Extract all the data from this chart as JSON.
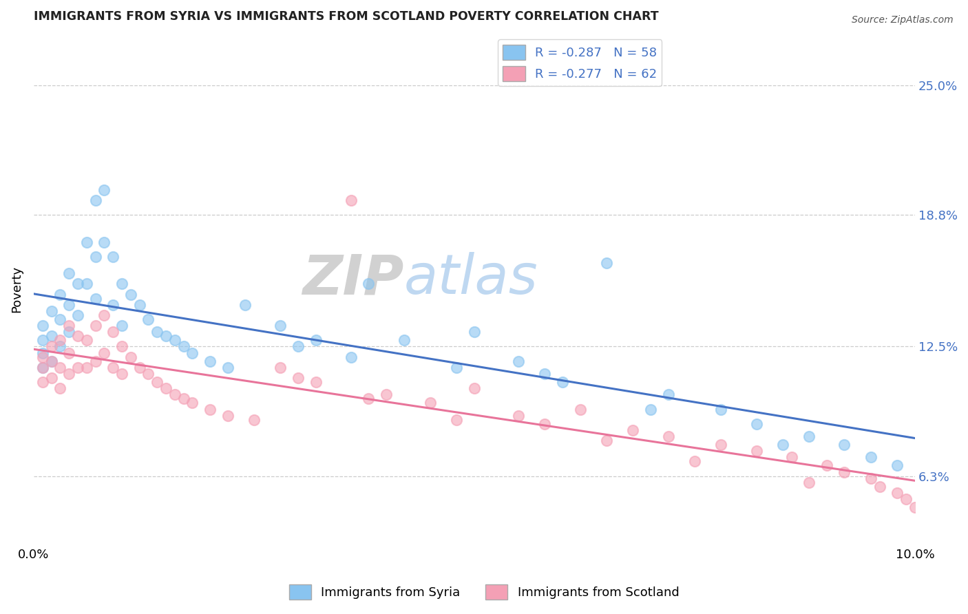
{
  "title": "IMMIGRANTS FROM SYRIA VS IMMIGRANTS FROM SCOTLAND POVERTY CORRELATION CHART",
  "source": "Source: ZipAtlas.com",
  "ylabel": "Poverty",
  "y_ticks": [
    "6.3%",
    "12.5%",
    "18.8%",
    "25.0%"
  ],
  "y_tick_vals": [
    0.063,
    0.125,
    0.188,
    0.25
  ],
  "xlim": [
    0.0,
    0.1
  ],
  "ylim": [
    0.03,
    0.275
  ],
  "legend_r1": "R = -0.287   N = 58",
  "legend_r2": "R = -0.277   N = 62",
  "color_syria": "#89C4F0",
  "color_scotland": "#F4A0B5",
  "color_line_syria": "#4472C4",
  "color_line_scotland": "#E8749A",
  "syria_scatter_x": [
    0.001,
    0.001,
    0.001,
    0.001,
    0.002,
    0.002,
    0.002,
    0.003,
    0.003,
    0.003,
    0.004,
    0.004,
    0.004,
    0.005,
    0.005,
    0.006,
    0.006,
    0.007,
    0.007,
    0.007,
    0.008,
    0.008,
    0.009,
    0.009,
    0.01,
    0.01,
    0.011,
    0.012,
    0.013,
    0.014,
    0.015,
    0.016,
    0.017,
    0.018,
    0.02,
    0.022,
    0.024,
    0.028,
    0.032,
    0.038,
    0.042,
    0.05,
    0.055,
    0.058,
    0.06,
    0.065,
    0.072,
    0.078,
    0.082,
    0.088,
    0.092,
    0.095,
    0.098,
    0.03,
    0.036,
    0.048,
    0.07,
    0.085
  ],
  "syria_scatter_y": [
    0.135,
    0.128,
    0.122,
    0.115,
    0.142,
    0.13,
    0.118,
    0.15,
    0.138,
    0.125,
    0.16,
    0.145,
    0.132,
    0.155,
    0.14,
    0.175,
    0.155,
    0.195,
    0.168,
    0.148,
    0.2,
    0.175,
    0.168,
    0.145,
    0.155,
    0.135,
    0.15,
    0.145,
    0.138,
    0.132,
    0.13,
    0.128,
    0.125,
    0.122,
    0.118,
    0.115,
    0.145,
    0.135,
    0.128,
    0.155,
    0.128,
    0.132,
    0.118,
    0.112,
    0.108,
    0.165,
    0.102,
    0.095,
    0.088,
    0.082,
    0.078,
    0.072,
    0.068,
    0.125,
    0.12,
    0.115,
    0.095,
    0.078
  ],
  "scotland_scatter_x": [
    0.001,
    0.001,
    0.001,
    0.002,
    0.002,
    0.002,
    0.003,
    0.003,
    0.003,
    0.004,
    0.004,
    0.004,
    0.005,
    0.005,
    0.006,
    0.006,
    0.007,
    0.007,
    0.008,
    0.008,
    0.009,
    0.009,
    0.01,
    0.01,
    0.011,
    0.012,
    0.013,
    0.014,
    0.015,
    0.016,
    0.017,
    0.018,
    0.02,
    0.022,
    0.025,
    0.028,
    0.032,
    0.036,
    0.04,
    0.045,
    0.05,
    0.055,
    0.058,
    0.062,
    0.068,
    0.072,
    0.078,
    0.082,
    0.086,
    0.09,
    0.092,
    0.095,
    0.096,
    0.098,
    0.099,
    0.1,
    0.03,
    0.038,
    0.048,
    0.065,
    0.075,
    0.088
  ],
  "scotland_scatter_y": [
    0.12,
    0.115,
    0.108,
    0.125,
    0.118,
    0.11,
    0.128,
    0.115,
    0.105,
    0.135,
    0.122,
    0.112,
    0.13,
    0.115,
    0.128,
    0.115,
    0.135,
    0.118,
    0.14,
    0.122,
    0.132,
    0.115,
    0.125,
    0.112,
    0.12,
    0.115,
    0.112,
    0.108,
    0.105,
    0.102,
    0.1,
    0.098,
    0.095,
    0.092,
    0.09,
    0.115,
    0.108,
    0.195,
    0.102,
    0.098,
    0.105,
    0.092,
    0.088,
    0.095,
    0.085,
    0.082,
    0.078,
    0.075,
    0.072,
    0.068,
    0.065,
    0.062,
    0.058,
    0.055,
    0.052,
    0.048,
    0.11,
    0.1,
    0.09,
    0.08,
    0.07,
    0.06
  ]
}
